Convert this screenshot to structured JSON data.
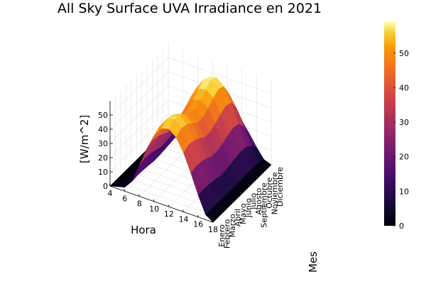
{
  "chart_data": {
    "type": "surface",
    "title": "All Sky Surface UVA Irradiance en 2021",
    "xlabel": "Hora",
    "ylabel": "Mes",
    "zlabel": "[W/m^2]",
    "x_ticks": [
      4,
      6,
      8,
      10,
      12,
      14,
      16,
      18
    ],
    "x_range": [
      4,
      18
    ],
    "months": [
      "Enero",
      "Febrero",
      "Marzo",
      "Abril",
      "Mayo",
      "Junio",
      "Julio",
      "Agosto",
      "Septiembre",
      "Octubre",
      "Noviembre",
      "Diciembre"
    ],
    "z_ticks": [
      0,
      10,
      20,
      30,
      40,
      50
    ],
    "z_range": [
      0,
      60
    ],
    "colorbar": {
      "range": [
        0,
        59
      ],
      "ticks": [
        0,
        10,
        20,
        30,
        40,
        50
      ],
      "colormap": "inferno"
    },
    "hours": [
      4,
      5,
      6,
      7,
      8,
      9,
      10,
      11,
      12,
      13,
      14,
      15,
      16,
      17,
      18
    ],
    "peak_by_month": [
      55,
      58,
      57,
      54,
      50,
      50,
      53,
      57,
      60,
      58,
      48,
      32
    ],
    "grid": true,
    "legend": "colorbar-right"
  }
}
